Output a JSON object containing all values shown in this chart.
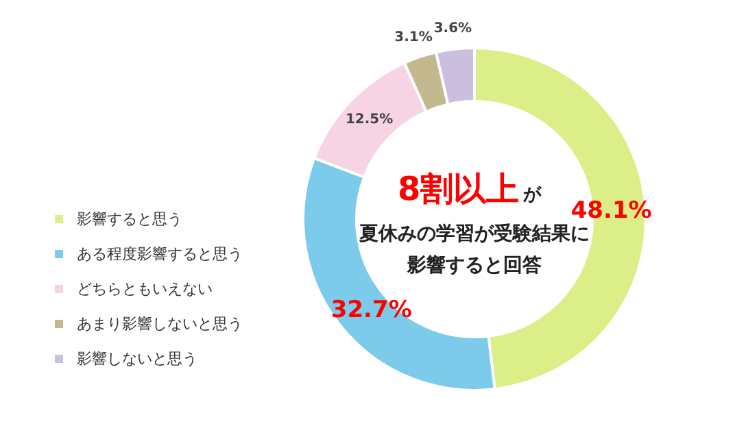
{
  "chart_data": {
    "type": "donut",
    "categories": [
      "影響すると思う",
      "ある程度影響すると思う",
      "どちらともいえない",
      "あまり影響しないと思う",
      "影響しないと思う"
    ],
    "values": [
      48.1,
      32.7,
      12.5,
      3.1,
      3.6
    ],
    "colors": [
      "#dcee88",
      "#7dcbea",
      "#f7d4e4",
      "#c4b88f",
      "#cbbfe0"
    ],
    "value_labels": [
      "48.1%",
      "32.7%",
      "12.5%",
      "3.1%",
      "3.6%"
    ],
    "legend": "left",
    "annotations": [
      "8割以上",
      "が",
      "夏休みの学習が受験結果に",
      "影響すると回答"
    ]
  }
}
